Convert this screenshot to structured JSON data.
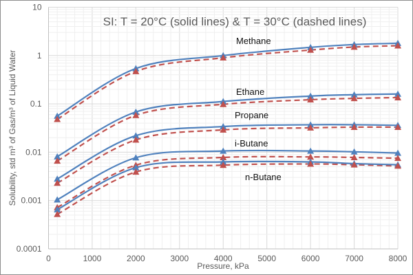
{
  "chart_data": {
    "type": "line",
    "title": "SI: T = 20°C (solid lines) & T = 30°C (dashed lines)",
    "xlabel": "Pressure, kPa",
    "ylabel": "Solubility, std  m³ of Gas/m³ of Liquid Water",
    "xlim": [
      0,
      8000
    ],
    "ylim": [
      0.0001,
      10
    ],
    "yscale": "log",
    "grid": true,
    "xticks": [
      "0",
      "1000",
      "2000",
      "3000",
      "4000",
      "5000",
      "6000",
      "7000",
      "8000"
    ],
    "yticks": [
      "10",
      "1",
      "0.1",
      "0.01",
      "0.001",
      "0.0001"
    ],
    "x": [
      200,
      2000,
      4000,
      6000,
      7000,
      8000
    ],
    "colors": {
      "solid": "#4f81bd",
      "dashed": "#c0504d"
    },
    "series": [
      {
        "name": "Methane",
        "values_20C": [
          0.056,
          0.54,
          1.0,
          1.48,
          1.69,
          1.8
        ],
        "values_30C": [
          0.048,
          0.47,
          0.9,
          1.3,
          1.5,
          1.6
        ]
      },
      {
        "name": "Ethane",
        "values_20C": [
          0.0081,
          0.068,
          0.112,
          0.145,
          0.155,
          0.16
        ],
        "values_30C": [
          0.0066,
          0.058,
          0.098,
          0.122,
          0.13,
          0.135
        ]
      },
      {
        "name": "Propane",
        "values_20C": [
          0.0028,
          0.022,
          0.034,
          0.037,
          0.037,
          0.036
        ],
        "values_30C": [
          0.0023,
          0.018,
          0.029,
          0.032,
          0.033,
          0.033
        ]
      },
      {
        "name": "i-Butane",
        "values_20C": [
          0.00104,
          0.0077,
          0.0106,
          0.0106,
          0.0102,
          0.0096
        ],
        "values_30C": [
          0.00072,
          0.0054,
          0.0078,
          0.008,
          0.0078,
          0.0075
        ]
      },
      {
        "name": "n-Butane",
        "values_20C": [
          0.00065,
          0.0048,
          0.0063,
          0.0063,
          0.0058,
          0.0055
        ],
        "values_30C": [
          0.00052,
          0.0039,
          0.0054,
          0.0057,
          0.0055,
          0.0052
        ]
      }
    ]
  }
}
